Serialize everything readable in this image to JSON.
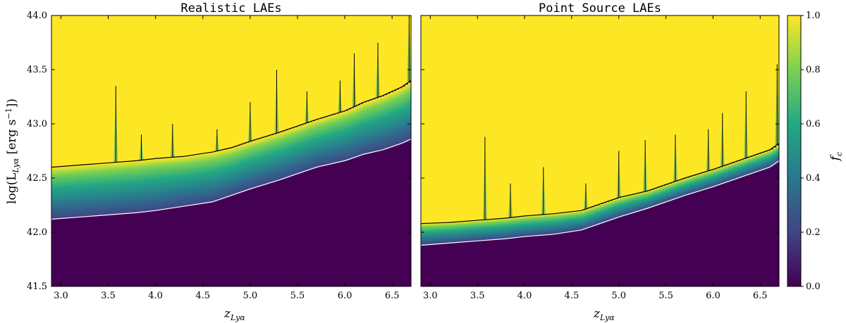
{
  "chart_data": [
    {
      "type": "heatmap",
      "title": "Realistic LAEs",
      "xlabel": "z_Lyα",
      "ylabel": "log(L_Lyα [erg s^-1])",
      "xlim": [
        2.9,
        6.7
      ],
      "ylim": [
        41.5,
        44.0
      ],
      "xticks": [
        3.0,
        3.5,
        4.0,
        4.5,
        5.0,
        5.5,
        6.0,
        6.5
      ],
      "yticks": [
        41.5,
        42.0,
        42.5,
        43.0,
        43.5,
        44.0
      ],
      "black_contour": {
        "x": [
          2.9,
          3.2,
          3.5,
          3.8,
          4.0,
          4.3,
          4.6,
          4.8,
          5.0,
          5.3,
          5.5,
          5.7,
          6.0,
          6.2,
          6.4,
          6.6,
          6.7
        ],
        "y": [
          42.6,
          42.62,
          42.64,
          42.66,
          42.68,
          42.7,
          42.74,
          42.78,
          42.84,
          42.92,
          42.98,
          43.04,
          43.12,
          43.2,
          43.26,
          43.34,
          43.4
        ]
      },
      "white_contour": {
        "x": [
          2.9,
          3.2,
          3.5,
          3.8,
          4.0,
          4.3,
          4.6,
          4.8,
          5.0,
          5.3,
          5.5,
          5.7,
          6.0,
          6.2,
          6.4,
          6.6,
          6.7
        ],
        "y": [
          42.12,
          42.14,
          42.16,
          42.18,
          42.2,
          42.24,
          42.28,
          42.34,
          42.4,
          42.48,
          42.54,
          42.6,
          42.66,
          42.72,
          42.76,
          42.82,
          42.86
        ]
      },
      "spikes": [
        {
          "z": 3.58,
          "peak": 43.35
        },
        {
          "z": 3.85,
          "peak": 42.9
        },
        {
          "z": 4.18,
          "peak": 43.0
        },
        {
          "z": 4.65,
          "peak": 42.95
        },
        {
          "z": 5.0,
          "peak": 43.2
        },
        {
          "z": 5.28,
          "peak": 43.5
        },
        {
          "z": 5.6,
          "peak": 43.3
        },
        {
          "z": 5.95,
          "peak": 43.4
        },
        {
          "z": 6.1,
          "peak": 43.65
        },
        {
          "z": 6.35,
          "peak": 43.75
        },
        {
          "z": 6.68,
          "peak": 44.0
        }
      ]
    },
    {
      "type": "heatmap",
      "title": "Point Source LAEs",
      "xlabel": "z_Lyα",
      "ylabel": "",
      "xlim": [
        2.9,
        6.7
      ],
      "ylim": [
        41.5,
        44.0
      ],
      "xticks": [
        3.0,
        3.5,
        4.0,
        4.5,
        5.0,
        5.5,
        6.0,
        6.5
      ],
      "yticks": [
        41.5,
        42.0,
        42.5,
        43.0,
        43.5,
        44.0
      ],
      "black_contour": {
        "x": [
          2.9,
          3.2,
          3.5,
          3.8,
          4.0,
          4.3,
          4.6,
          4.8,
          5.0,
          5.3,
          5.5,
          5.7,
          6.0,
          6.2,
          6.4,
          6.6,
          6.7
        ],
        "y": [
          42.08,
          42.09,
          42.11,
          42.13,
          42.15,
          42.17,
          42.2,
          42.26,
          42.32,
          42.38,
          42.44,
          42.5,
          42.58,
          42.64,
          42.7,
          42.76,
          42.82
        ]
      },
      "white_contour": {
        "x": [
          2.9,
          3.2,
          3.5,
          3.8,
          4.0,
          4.3,
          4.6,
          4.8,
          5.0,
          5.3,
          5.5,
          5.7,
          6.0,
          6.2,
          6.4,
          6.6,
          6.7
        ],
        "y": [
          41.88,
          41.9,
          41.92,
          41.94,
          41.96,
          41.98,
          42.02,
          42.08,
          42.14,
          42.22,
          42.28,
          42.34,
          42.42,
          42.48,
          42.54,
          42.6,
          42.66
        ]
      },
      "spikes": [
        {
          "z": 3.58,
          "peak": 42.88
        },
        {
          "z": 3.85,
          "peak": 42.45
        },
        {
          "z": 4.2,
          "peak": 42.6
        },
        {
          "z": 4.65,
          "peak": 42.45
        },
        {
          "z": 5.0,
          "peak": 42.75
        },
        {
          "z": 5.28,
          "peak": 42.85
        },
        {
          "z": 5.6,
          "peak": 42.9
        },
        {
          "z": 5.95,
          "peak": 42.95
        },
        {
          "z": 6.1,
          "peak": 43.1
        },
        {
          "z": 6.35,
          "peak": 43.3
        },
        {
          "z": 6.68,
          "peak": 43.55
        }
      ]
    }
  ],
  "colorbar": {
    "label": "f_c",
    "ticks": [
      0.0,
      0.2,
      0.4,
      0.6,
      0.8,
      1.0
    ],
    "tick_labels": [
      "0.0",
      "0.2",
      "0.4",
      "0.6",
      "0.8",
      "1.0"
    ],
    "colormap": "viridis",
    "stops": [
      "#440154",
      "#414487",
      "#2a788e",
      "#22a884",
      "#7ad151",
      "#fde725"
    ]
  },
  "labels": {
    "left_title": "Realistic LAEs",
    "right_title": "Point Source LAEs",
    "x_main": "z",
    "x_sub": "Lyα",
    "y_label": "log(L",
    "y_sub": "Lyα",
    "y_unit": " [erg s",
    "y_sup": "−1",
    "y_close": "])",
    "cbar_label": "f",
    "cbar_sub": "c"
  },
  "x_tick_labels": [
    "3.0",
    "3.5",
    "4.0",
    "4.5",
    "5.0",
    "5.5",
    "6.0",
    "6.5"
  ],
  "y_tick_labels": [
    "41.5",
    "42.0",
    "42.5",
    "43.0",
    "43.5",
    "44.0"
  ]
}
